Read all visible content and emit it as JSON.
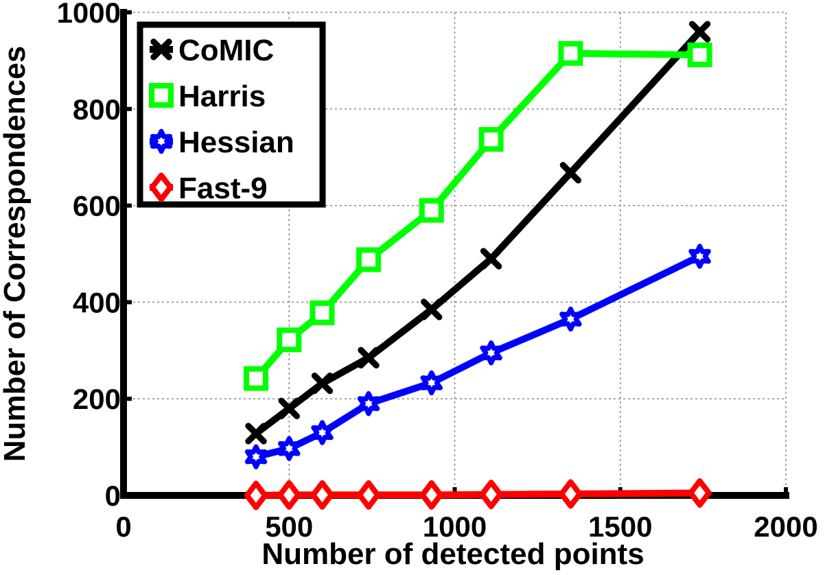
{
  "chart_data": {
    "type": "line",
    "title": "",
    "xlabel": "Number of detected points",
    "ylabel": "Number of Correspondences",
    "xlim": [
      0,
      2000
    ],
    "ylim": [
      0,
      1000
    ],
    "xticks": [
      0,
      500,
      1000,
      1500,
      2000
    ],
    "yticks": [
      0,
      200,
      400,
      600,
      800,
      1000
    ],
    "grid": true,
    "legend_position": "top-left",
    "series": [
      {
        "name": "CoMIC",
        "color": "#000000",
        "marker": "x",
        "x": [
          400,
          500,
          600,
          740,
          930,
          1110,
          1350,
          1740
        ],
        "y": [
          128,
          180,
          232,
          285,
          385,
          490,
          668,
          960
        ]
      },
      {
        "name": "Harris",
        "color": "#00ff00",
        "marker": "square",
        "x": [
          400,
          500,
          600,
          740,
          930,
          1110,
          1350,
          1740
        ],
        "y": [
          242,
          322,
          378,
          488,
          590,
          737,
          915,
          912
        ]
      },
      {
        "name": "Hessian",
        "color": "#0000ff",
        "marker": "star",
        "x": [
          400,
          500,
          600,
          740,
          930,
          1110,
          1350,
          1740
        ],
        "y": [
          80,
          97,
          130,
          190,
          233,
          295,
          365,
          495
        ]
      },
      {
        "name": "Fast-9",
        "color": "#ff0000",
        "marker": "diamond",
        "x": [
          400,
          500,
          600,
          740,
          930,
          1110,
          1350,
          1740
        ],
        "y": [
          0,
          1,
          1,
          1,
          1,
          2,
          3,
          5
        ]
      }
    ]
  }
}
